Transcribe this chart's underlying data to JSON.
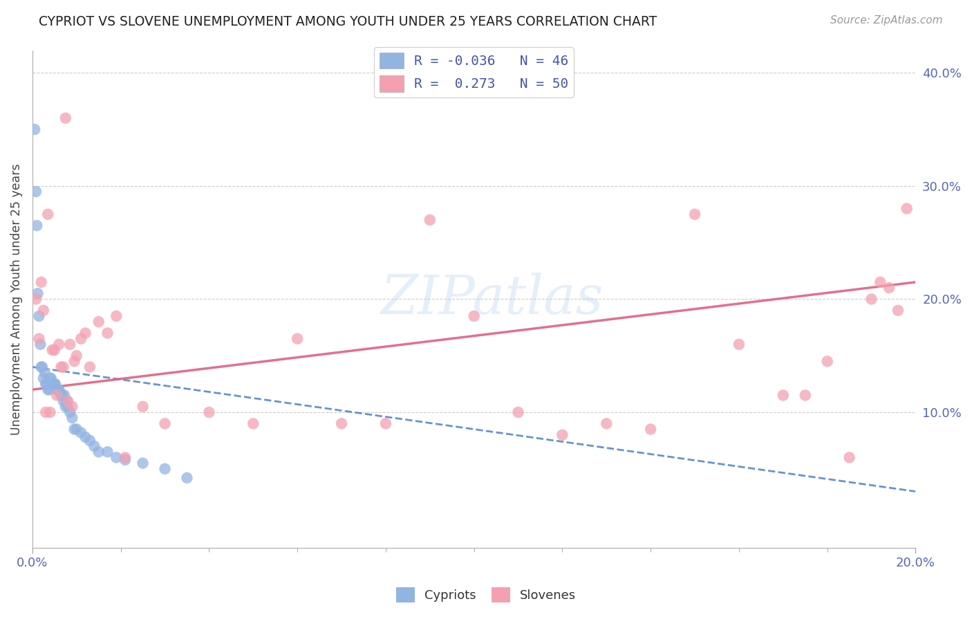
{
  "title": "CYPRIOT VS SLOVENE UNEMPLOYMENT AMONG YOUTH UNDER 25 YEARS CORRELATION CHART",
  "source": "Source: ZipAtlas.com",
  "ylabel": "Unemployment Among Youth under 25 years",
  "legend_bottom": [
    "Cypriots",
    "Slovenes"
  ],
  "cypriot_R": -0.036,
  "cypriot_N": 46,
  "slovene_R": 0.273,
  "slovene_N": 50,
  "xmin": 0.0,
  "xmax": 0.2,
  "ymin": -0.02,
  "ymax": 0.42,
  "cypriot_color": "#92B4E3",
  "slovene_color": "#F4A0B0",
  "cypriot_line_color": "#5588CC",
  "slovene_line_color": "#E06080",
  "background_color": "#FFFFFF",
  "grid_color": "#CCCCCC",
  "cypriot_x": [
    0.0005,
    0.0008,
    0.001,
    0.0012,
    0.0015,
    0.0018,
    0.002,
    0.0022,
    0.0025,
    0.0028,
    0.003,
    0.0032,
    0.0035,
    0.0038,
    0.004,
    0.0042,
    0.0045,
    0.0048,
    0.005,
    0.0052,
    0.0055,
    0.0058,
    0.006,
    0.0062,
    0.0065,
    0.0068,
    0.007,
    0.0072,
    0.0075,
    0.0078,
    0.008,
    0.0085,
    0.009,
    0.0095,
    0.01,
    0.011,
    0.012,
    0.013,
    0.014,
    0.015,
    0.017,
    0.019,
    0.021,
    0.025,
    0.03,
    0.035
  ],
  "cypriot_y": [
    0.35,
    0.295,
    0.265,
    0.205,
    0.185,
    0.16,
    0.14,
    0.14,
    0.13,
    0.135,
    0.125,
    0.125,
    0.12,
    0.12,
    0.13,
    0.13,
    0.125,
    0.125,
    0.125,
    0.125,
    0.12,
    0.12,
    0.12,
    0.118,
    0.115,
    0.115,
    0.11,
    0.115,
    0.105,
    0.11,
    0.105,
    0.1,
    0.095,
    0.085,
    0.085,
    0.082,
    0.078,
    0.075,
    0.07,
    0.065,
    0.065,
    0.06,
    0.058,
    0.055,
    0.05,
    0.042
  ],
  "slovene_x": [
    0.0008,
    0.0015,
    0.002,
    0.0025,
    0.003,
    0.0035,
    0.004,
    0.0045,
    0.005,
    0.0055,
    0.006,
    0.0065,
    0.007,
    0.0075,
    0.008,
    0.0085,
    0.009,
    0.0095,
    0.01,
    0.011,
    0.012,
    0.013,
    0.015,
    0.017,
    0.019,
    0.021,
    0.025,
    0.03,
    0.04,
    0.05,
    0.06,
    0.07,
    0.08,
    0.09,
    0.1,
    0.11,
    0.12,
    0.13,
    0.14,
    0.15,
    0.16,
    0.17,
    0.175,
    0.18,
    0.185,
    0.19,
    0.192,
    0.194,
    0.196,
    0.198
  ],
  "slovene_y": [
    0.2,
    0.165,
    0.215,
    0.19,
    0.1,
    0.275,
    0.1,
    0.155,
    0.155,
    0.115,
    0.16,
    0.14,
    0.14,
    0.36,
    0.11,
    0.16,
    0.105,
    0.145,
    0.15,
    0.165,
    0.17,
    0.14,
    0.18,
    0.17,
    0.185,
    0.06,
    0.105,
    0.09,
    0.1,
    0.09,
    0.165,
    0.09,
    0.09,
    0.27,
    0.185,
    0.1,
    0.08,
    0.09,
    0.085,
    0.275,
    0.16,
    0.115,
    0.115,
    0.145,
    0.06,
    0.2,
    0.215,
    0.21,
    0.19,
    0.28
  ],
  "trend_cyp_x0": 0.0,
  "trend_cyp_y0": 0.14,
  "trend_cyp_x1": 0.2,
  "trend_cyp_y1": 0.03,
  "trend_slo_x0": 0.0,
  "trend_slo_y0": 0.12,
  "trend_slo_x1": 0.2,
  "trend_slo_y1": 0.215
}
